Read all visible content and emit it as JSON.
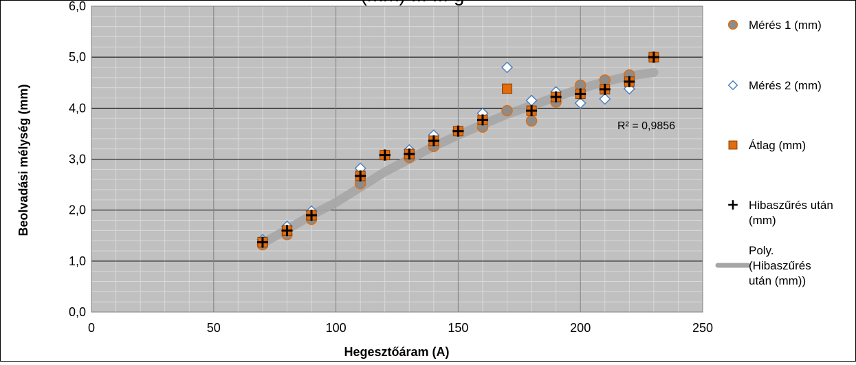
{
  "chart_data": {
    "type": "scatter",
    "title": "(mm) ... ... g",
    "xlabel": "Hegesztőáram (A)",
    "ylabel": "Beolvadási mélység (mm)",
    "xlim": [
      0,
      250
    ],
    "ylim": [
      0,
      6
    ],
    "x_ticks": [
      "0",
      "50",
      "100",
      "150",
      "200",
      "250"
    ],
    "y_ticks": [
      "0,0",
      "1,0",
      "2,0",
      "3,0",
      "4,0",
      "5,0",
      "6,0"
    ],
    "grid": true,
    "legend_position": "right",
    "r_squared_label": "R² = 0,9856",
    "colors": {
      "plot_background": "#c0c0c0",
      "gridline_major": "#000000",
      "gridline_minor": "#d9d9d9",
      "meres1_fill": "#8c8c8c",
      "meres1_edge": "#e46c0a",
      "meres2_edge": "#4f81bd",
      "atlag_fill": "#e46c0a",
      "atlag_edge": "#7f3f0a",
      "hibaszures": "#000000",
      "trend": "#a6a6a6"
    },
    "series": [
      {
        "name": "Mérés 1 (mm)",
        "marker": "circle",
        "points": [
          [
            70,
            1.32
          ],
          [
            80,
            1.52
          ],
          [
            90,
            1.82
          ],
          [
            110,
            2.52
          ],
          [
            120,
            3.08
          ],
          [
            130,
            3.03
          ],
          [
            140,
            3.25
          ],
          [
            150,
            3.55
          ],
          [
            160,
            3.63
          ],
          [
            170,
            3.95
          ],
          [
            180,
            3.75
          ],
          [
            190,
            4.12
          ],
          [
            200,
            4.45
          ],
          [
            210,
            4.55
          ],
          [
            220,
            4.65
          ],
          [
            230,
            5.0
          ]
        ]
      },
      {
        "name": "Mérés 2 (mm)",
        "marker": "diamond",
        "points": [
          [
            70,
            1.42
          ],
          [
            80,
            1.68
          ],
          [
            90,
            1.98
          ],
          [
            110,
            2.82
          ],
          [
            120,
            3.08
          ],
          [
            130,
            3.18
          ],
          [
            140,
            3.47
          ],
          [
            150,
            3.55
          ],
          [
            160,
            3.9
          ],
          [
            170,
            4.8
          ],
          [
            180,
            4.15
          ],
          [
            190,
            4.32
          ],
          [
            200,
            4.1
          ],
          [
            210,
            4.18
          ],
          [
            220,
            4.38
          ],
          [
            230,
            5.0
          ]
        ]
      },
      {
        "name": "Átlag (mm)",
        "marker": "square",
        "points": [
          [
            70,
            1.37
          ],
          [
            80,
            1.6
          ],
          [
            90,
            1.9
          ],
          [
            110,
            2.67
          ],
          [
            120,
            3.08
          ],
          [
            130,
            3.1
          ],
          [
            140,
            3.36
          ],
          [
            150,
            3.55
          ],
          [
            160,
            3.77
          ],
          [
            170,
            4.38
          ],
          [
            180,
            3.95
          ],
          [
            190,
            4.22
          ],
          [
            200,
            4.28
          ],
          [
            210,
            4.37
          ],
          [
            220,
            4.52
          ],
          [
            230,
            5.0
          ]
        ]
      },
      {
        "name": "Hibaszűrés után (mm)",
        "marker": "plus",
        "points": [
          [
            70,
            1.37
          ],
          [
            80,
            1.6
          ],
          [
            90,
            1.9
          ],
          [
            110,
            2.67
          ],
          [
            120,
            3.08
          ],
          [
            130,
            3.1
          ],
          [
            140,
            3.36
          ],
          [
            150,
            3.55
          ],
          [
            160,
            3.77
          ],
          [
            180,
            3.95
          ],
          [
            190,
            4.22
          ],
          [
            200,
            4.28
          ],
          [
            210,
            4.37
          ],
          [
            220,
            4.52
          ],
          [
            230,
            5.0
          ]
        ]
      },
      {
        "name": "Poly. (Hibaszűrés után (mm))",
        "marker": "line",
        "points": [
          [
            70,
            1.35
          ],
          [
            80,
            1.62
          ],
          [
            90,
            1.9
          ],
          [
            100,
            2.15
          ],
          [
            110,
            2.45
          ],
          [
            120,
            2.75
          ],
          [
            130,
            3.0
          ],
          [
            140,
            3.25
          ],
          [
            150,
            3.47
          ],
          [
            160,
            3.68
          ],
          [
            170,
            3.88
          ],
          [
            180,
            4.05
          ],
          [
            190,
            4.22
          ],
          [
            200,
            4.38
          ],
          [
            210,
            4.52
          ],
          [
            220,
            4.63
          ],
          [
            230,
            4.7
          ]
        ]
      }
    ]
  }
}
